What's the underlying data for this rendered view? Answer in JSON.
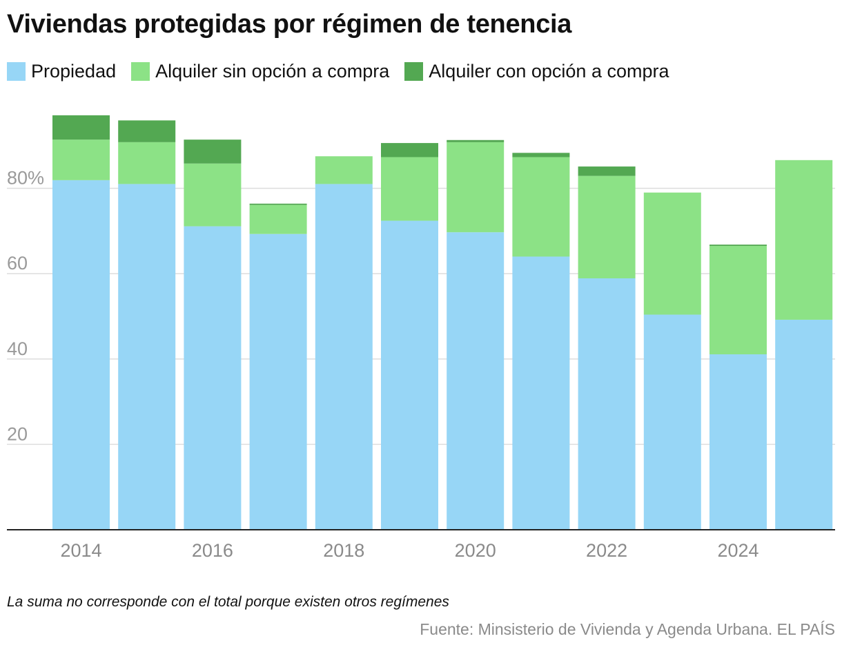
{
  "title": "Viviendas protegidas por régimen de tenencia",
  "note": "La suma no corresponde con el total porque existen otros regímenes",
  "source": "Fuente: Minsisterio de Vivienda y Agenda Urbana. EL PAÍS",
  "chart_data": {
    "type": "bar",
    "stacked": true,
    "categories": [
      "2014",
      "2015",
      "2016",
      "2017",
      "2018",
      "2019",
      "2020",
      "2021",
      "2022",
      "2023",
      "2024",
      "2025"
    ],
    "x_tick_labels": [
      "2014",
      "",
      "2016",
      "",
      "2018",
      "",
      "2020",
      "",
      "2022",
      "",
      "2024",
      ""
    ],
    "series": [
      {
        "name": "Propiedad",
        "color": "#97d6f6",
        "values": [
          81.9,
          81.0,
          71.1,
          69.3,
          81.0,
          72.4,
          69.7,
          64.0,
          58.9,
          50.4,
          41.1,
          49.2
        ]
      },
      {
        "name": "Alquiler sin opción a compra",
        "color": "#8ce286",
        "values": [
          9.5,
          9.8,
          14.7,
          6.8,
          6.5,
          14.9,
          21.1,
          23.3,
          24.0,
          28.6,
          25.4,
          37.4
        ]
      },
      {
        "name": "Alquiler con opción a compra",
        "color": "#53a852",
        "values": [
          5.7,
          5.1,
          5.6,
          0.3,
          0.0,
          3.3,
          0.5,
          1.0,
          2.2,
          0.0,
          0.3,
          0.0
        ]
      }
    ],
    "y_ticks": [
      20,
      40,
      60,
      80
    ],
    "y_tick_labels": [
      "20",
      "40",
      "60",
      "80%"
    ],
    "ylim": [
      0,
      100
    ],
    "grid": true,
    "legend_position": "top-left"
  }
}
